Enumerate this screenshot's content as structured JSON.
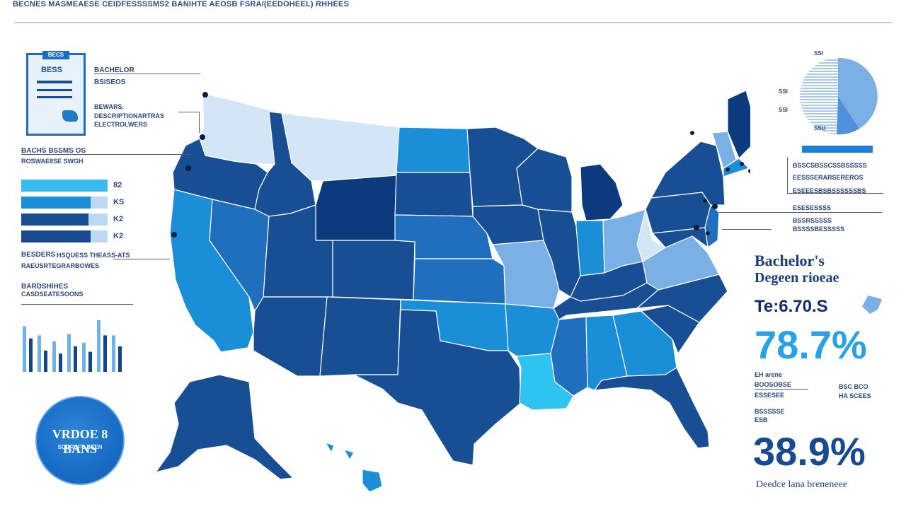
{
  "header": {
    "title": "BECNES MASMEAESE CEIDFESSSSMS2 BANIHTE AEOSB FSRA/(EEDOHEEL) RHHEES"
  },
  "doc_card": {
    "tag": "BECS",
    "title": "BESS",
    "caption": "BACHELOR"
  },
  "left_labels": {
    "l1a": "BACHELOR",
    "l1b": "BSISEOS",
    "l2a": "BEWARS.",
    "l2b": "DESCRIPTIONARTRAS",
    "l2c": "ELECTROLWERS",
    "l3a": "BACHS BSSMS OS",
    "l3b": "ROSWAE8SE SWGH",
    "l4a": "BESDERS",
    "l4b": "HSQUESS THEASS-ATS",
    "l4c": "RAEUSRTEGRARBOWES",
    "l5a": "BARDSHIHES",
    "l5b": "CASDSEATESOONS"
  },
  "left_bars": [
    {
      "value": "82",
      "fill": 1.0,
      "color": "#39bbef"
    },
    {
      "value": "KS",
      "fill": 0.8,
      "color": "#1b8fd6"
    },
    {
      "value": "K2",
      "fill": 0.78,
      "color": "#164f92"
    },
    {
      "value": "K2",
      "fill": 0.8,
      "color": "#1a4a8f"
    }
  ],
  "mini_bars": [
    {
      "h1": 0.75,
      "h2": 0.55
    },
    {
      "h1": 0.6,
      "h2": 0.35
    },
    {
      "h1": 0.5,
      "h2": 0.3
    },
    {
      "h1": 0.62,
      "h2": 0.42
    },
    {
      "h1": 0.48,
      "h2": 0.33
    },
    {
      "h1": 0.85,
      "h2": 0.6
    },
    {
      "h1": 0.6,
      "h2": 0.42
    }
  ],
  "badge": {
    "line1": "VRDOE 8 BANS",
    "line2": "SORRSFS BSEN"
  },
  "right": {
    "pie_labels": [
      "SSI",
      "SSI",
      "SSI",
      "SSU"
    ],
    "stripe_label": "BSSCSBSSCSSBSSSSS",
    "r1": "EESSSERARSEREROS",
    "r2": "ESEEESBSBSSSSSSBS",
    "r3": "ESESESSSS",
    "r4": "BSSRSSSSS",
    "r5": "BSSSSBESSSSS",
    "heading1": "Bachelor's",
    "heading2": "Degeen rioeae",
    "sub": "Te:6.70.S",
    "pct1": "78.7%",
    "n1a": "EH arene",
    "n1b": "BOOSOBSE",
    "n1c": "ESSESEE",
    "n2a": "BSC BCO",
    "n2b": "HA SCEES",
    "n3a": "BSSSSSE",
    "n3b": "ESB",
    "pct2": "38.9%",
    "footer": "Deedce lana breneneee"
  },
  "colors": {
    "darkest": "#0b3b7e",
    "dark": "#184f94",
    "mid": "#1f6fbe",
    "bright": "#1a8ed6",
    "light": "#7ab0e6",
    "pale": "#d2e6f8",
    "cyan": "#2ec3f0",
    "accent_text": "#25a3e6",
    "heading_text": "#1a3d7c"
  }
}
